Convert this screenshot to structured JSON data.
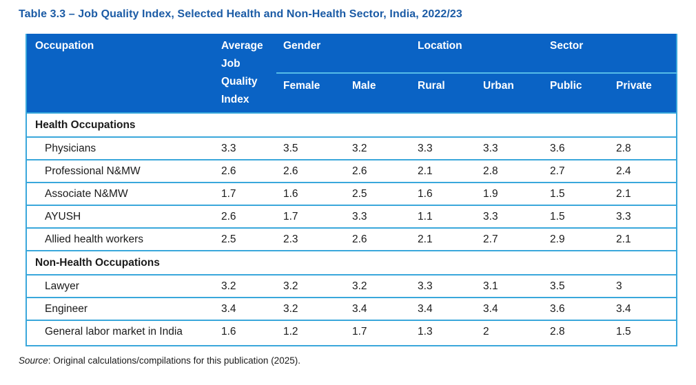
{
  "title": "Table 3.3 – Job Quality Index, Selected Health and Non-Health Sector, India, 2022/23",
  "colors": {
    "header_bg": "#0A63C5",
    "title_text": "#1B5BA5",
    "grid_border": "#39A7DB",
    "header_underline": "#56BCE8",
    "body_text": "#1A1A1A"
  },
  "table": {
    "occupation_header": "Occupation",
    "avg_header": "Average Job Quality Index",
    "groups": [
      {
        "label": "Gender",
        "children": [
          "Female",
          "Male"
        ]
      },
      {
        "label": "Location",
        "children": [
          "Rural",
          "Urban"
        ]
      },
      {
        "label": "Sector",
        "children": [
          "Public",
          "Private"
        ]
      }
    ],
    "sections": [
      {
        "title": "Health Occupations",
        "rows": [
          {
            "label": "Physicians",
            "values": [
              "3.3",
              "3.5",
              "3.2",
              "3.3",
              "3.3",
              "3.6",
              "2.8"
            ]
          },
          {
            "label": "Professional N&MW",
            "values": [
              "2.6",
              "2.6",
              "2.6",
              "2.1",
              "2.8",
              "2.7",
              "2.4"
            ]
          },
          {
            "label": "Associate N&MW",
            "values": [
              "1.7",
              "1.6",
              "2.5",
              "1.6",
              "1.9",
              "1.5",
              "2.1"
            ]
          },
          {
            "label": "AYUSH",
            "values": [
              "2.6",
              "1.7",
              "3.3",
              "1.1",
              "3.3",
              "1.5",
              "3.3"
            ]
          },
          {
            "label": "Allied health workers",
            "values": [
              "2.5",
              "2.3",
              "2.6",
              "2.1",
              "2.7",
              "2.9",
              "2.1"
            ]
          }
        ]
      },
      {
        "title": "Non-Health Occupations",
        "rows": [
          {
            "label": "Lawyer",
            "values": [
              "3.2",
              "3.2",
              "3.2",
              "3.3",
              "3.1",
              "3.5",
              "3"
            ]
          },
          {
            "label": "Engineer",
            "values": [
              "3.4",
              "3.2",
              "3.4",
              "3.4",
              "3.4",
              "3.6",
              "3.4"
            ]
          },
          {
            "label": "General labor market in India",
            "values": [
              "1.6",
              "1.2",
              "1.7",
              "1.3",
              "2",
              "2.8",
              "1.5"
            ]
          }
        ]
      }
    ]
  },
  "source": {
    "label": "Source",
    "rest": ": Original calculations/compilations for this publication (2025)."
  }
}
